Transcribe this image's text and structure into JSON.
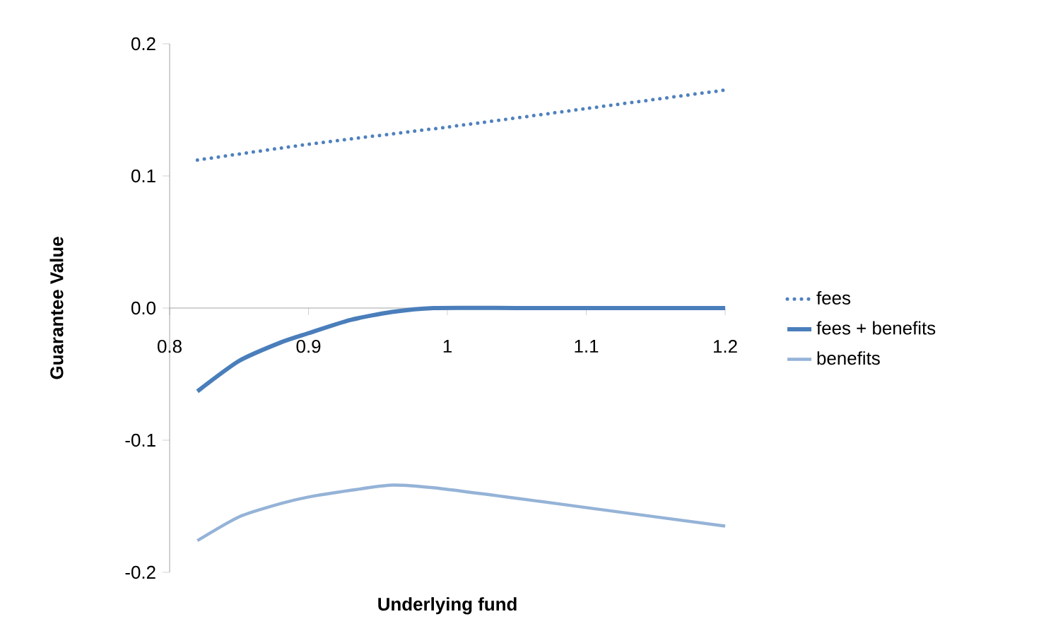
{
  "chart_data": {
    "type": "line",
    "xlabel": "Underlying fund",
    "ylabel": "Guarantee Value",
    "xlim": [
      0.8,
      1.2
    ],
    "xticks": [
      0.8,
      0.9,
      1,
      1.1,
      1.2
    ],
    "ylim": [
      -0.2,
      0.2
    ],
    "yticks": [
      {
        "value": -0.2,
        "label": "-0.2"
      },
      {
        "value": -0.1,
        "label": "-0.1"
      },
      {
        "value": 0,
        "label": "0.0"
      },
      {
        "value": 0.1,
        "label": "0.1"
      },
      {
        "value": 0.2,
        "label": "0.2"
      }
    ],
    "grid": false,
    "legend": "right",
    "marker": "none",
    "series": [
      {
        "name": "fees",
        "color": "#4f81bd",
        "line_style": "dotted",
        "x": [
          0.82,
          0.9,
          1.0,
          1.1,
          1.2
        ],
        "values": [
          0.112,
          0.124,
          0.137,
          0.151,
          0.165
        ]
      },
      {
        "name": "fees + benefits",
        "color": "#4a7ebb",
        "line_style": "solid",
        "x": [
          0.82,
          0.85,
          0.88,
          0.9,
          0.93,
          0.96,
          0.99,
          1.05,
          1.1,
          1.2
        ],
        "values": [
          -0.063,
          -0.04,
          -0.026,
          -0.019,
          -0.009,
          -0.003,
          0,
          0,
          0,
          0
        ]
      },
      {
        "name": "benefits",
        "color": "#95b3d7",
        "line_style": "solid",
        "x": [
          0.82,
          0.85,
          0.88,
          0.9,
          0.93,
          0.96,
          0.99,
          1.05,
          1.1,
          1.2
        ],
        "values": [
          -0.176,
          -0.158,
          -0.148,
          -0.143,
          -0.138,
          -0.134,
          -0.136,
          -0.144,
          -0.151,
          -0.165
        ]
      }
    ]
  }
}
